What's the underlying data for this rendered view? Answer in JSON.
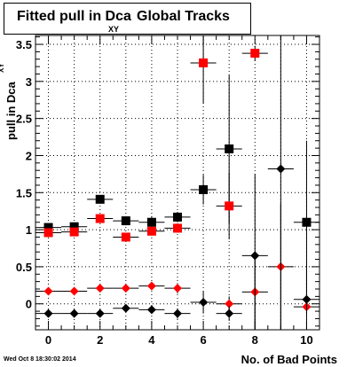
{
  "chart_data": {
    "type": "scatter",
    "title": "Fitted pull in Dca",
    "title_subscript": "XY",
    "title_suffix": "Global Tracks",
    "xlabel": "No. of Bad Points",
    "ylabel": "pull in Dca",
    "ylabel_subscript": "XY",
    "xlim": [
      -0.5,
      10.5
    ],
    "ylim": [
      -0.35,
      3.62
    ],
    "xticks": [
      0,
      2,
      4,
      6,
      8,
      10
    ],
    "yticks": [
      0,
      0.5,
      1,
      1.5,
      2,
      2.5,
      3,
      3.5
    ],
    "ytick_labels": [
      "0",
      "0.5",
      "1",
      "1.5",
      "2",
      "2.5",
      "3",
      "3.5"
    ],
    "grid": true,
    "series": [
      {
        "marker": "square",
        "color": "#000000",
        "points": [
          {
            "x": 0,
            "y": 1.03,
            "yerr": 0.04
          },
          {
            "x": 1,
            "y": 1.04,
            "yerr": 0.04
          },
          {
            "x": 2,
            "y": 1.41,
            "yerr": 0.05
          },
          {
            "x": 3,
            "y": 1.12,
            "yerr": 0.06
          },
          {
            "x": 4,
            "y": 1.1,
            "yerr": 0.08
          },
          {
            "x": 5,
            "y": 1.17,
            "yerr": 0.07
          },
          {
            "x": 6,
            "y": 1.54,
            "yerr": 0.2
          },
          {
            "x": 7,
            "y": 2.09,
            "yerr": 1.0
          },
          {
            "x": 10,
            "y": 1.1,
            "yerr": 1.1
          }
        ]
      },
      {
        "marker": "square",
        "color": "#ff0000",
        "points": [
          {
            "x": 0,
            "y": 0.96,
            "yerr": 0.04
          },
          {
            "x": 1,
            "y": 0.97,
            "yerr": 0.04
          },
          {
            "x": 2,
            "y": 1.15,
            "yerr": 0.04
          },
          {
            "x": 3,
            "y": 0.9,
            "yerr": 0.04
          },
          {
            "x": 4,
            "y": 0.98,
            "yerr": 0.06
          },
          {
            "x": 5,
            "y": 1.02,
            "yerr": 0.06
          },
          {
            "x": 6,
            "y": 3.25,
            "yerr": 0.55
          },
          {
            "x": 7,
            "y": 1.32,
            "yerr": 0.45
          },
          {
            "x": 8,
            "y": 3.38,
            "yerr": 0.1
          }
        ]
      },
      {
        "marker": "diamond",
        "color": "#ff0000",
        "points": [
          {
            "x": 0,
            "y": 0.17,
            "yerr": 0.02
          },
          {
            "x": 1,
            "y": 0.17,
            "yerr": 0.02
          },
          {
            "x": 2,
            "y": 0.21,
            "yerr": 0.02
          },
          {
            "x": 3,
            "y": 0.21,
            "yerr": 0.03
          },
          {
            "x": 4,
            "y": 0.24,
            "yerr": 0.04
          },
          {
            "x": 5,
            "y": 0.21,
            "yerr": 0.07
          },
          {
            "x": 7,
            "y": 0.0,
            "yerr": 0.1
          },
          {
            "x": 8,
            "y": 0.16,
            "yerr": 0.5
          },
          {
            "x": 9,
            "y": 0.5,
            "yerr": 0.85
          },
          {
            "x": 10,
            "y": -0.04,
            "yerr": 0.1
          }
        ]
      },
      {
        "marker": "diamond",
        "color": "#000000",
        "points": [
          {
            "x": 0,
            "y": -0.13,
            "yerr": 0.02
          },
          {
            "x": 1,
            "y": -0.13,
            "yerr": 0.02
          },
          {
            "x": 2,
            "y": -0.13,
            "yerr": 0.02
          },
          {
            "x": 3,
            "y": -0.06,
            "yerr": 0.03
          },
          {
            "x": 4,
            "y": -0.08,
            "yerr": 0.04
          },
          {
            "x": 5,
            "y": -0.13,
            "yerr": 0.07
          },
          {
            "x": 6,
            "y": 0.02,
            "yerr": 0.15
          },
          {
            "x": 7,
            "y": -0.13,
            "yerr": 0.1
          },
          {
            "x": 8,
            "y": 0.65,
            "yerr": 1.1
          },
          {
            "x": 9,
            "y": 1.82,
            "yerr": 2.2
          },
          {
            "x": 10,
            "y": 0.06,
            "yerr": 0.4
          }
        ]
      }
    ]
  },
  "timestamp": "Wed Oct 8 18:30:02 2014"
}
